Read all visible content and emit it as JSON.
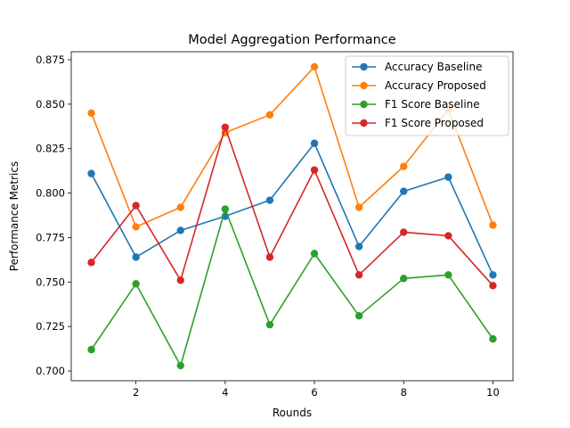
{
  "chart_data": {
    "type": "line",
    "title": "Model Aggregation Performance",
    "xlabel": "Rounds",
    "ylabel": "Performance Metrics",
    "x": [
      1,
      2,
      3,
      4,
      5,
      6,
      7,
      8,
      9,
      10
    ],
    "xlim": [
      0.55,
      10.45
    ],
    "ylim": [
      0.6945,
      0.8795
    ],
    "xticks": [
      2,
      4,
      6,
      8,
      10
    ],
    "yticks": [
      0.7,
      0.725,
      0.75,
      0.775,
      0.8,
      0.825,
      0.85,
      0.875
    ],
    "ytick_labels": [
      "0.700",
      "0.725",
      "0.750",
      "0.775",
      "0.800",
      "0.825",
      "0.850",
      "0.875"
    ],
    "grid": false,
    "legend_position": "top-right",
    "series": [
      {
        "name": "Accuracy Baseline",
        "color": "#1f77b4",
        "values": [
          0.811,
          0.764,
          0.779,
          0.787,
          0.796,
          0.828,
          0.77,
          0.801,
          0.809,
          0.754
        ]
      },
      {
        "name": "Accuracy Proposed",
        "color": "#ff7f0e",
        "values": [
          0.845,
          0.781,
          0.792,
          0.834,
          0.844,
          0.871,
          0.792,
          0.815,
          0.847,
          0.782
        ]
      },
      {
        "name": "F1 Score Baseline",
        "color": "#2ca02c",
        "values": [
          0.712,
          0.749,
          0.703,
          0.791,
          0.726,
          0.766,
          0.731,
          0.752,
          0.754,
          0.718
        ]
      },
      {
        "name": "F1 Score Proposed",
        "color": "#d62728",
        "values": [
          0.761,
          0.793,
          0.751,
          0.837,
          0.764,
          0.813,
          0.754,
          0.778,
          0.776,
          0.748
        ]
      }
    ]
  }
}
